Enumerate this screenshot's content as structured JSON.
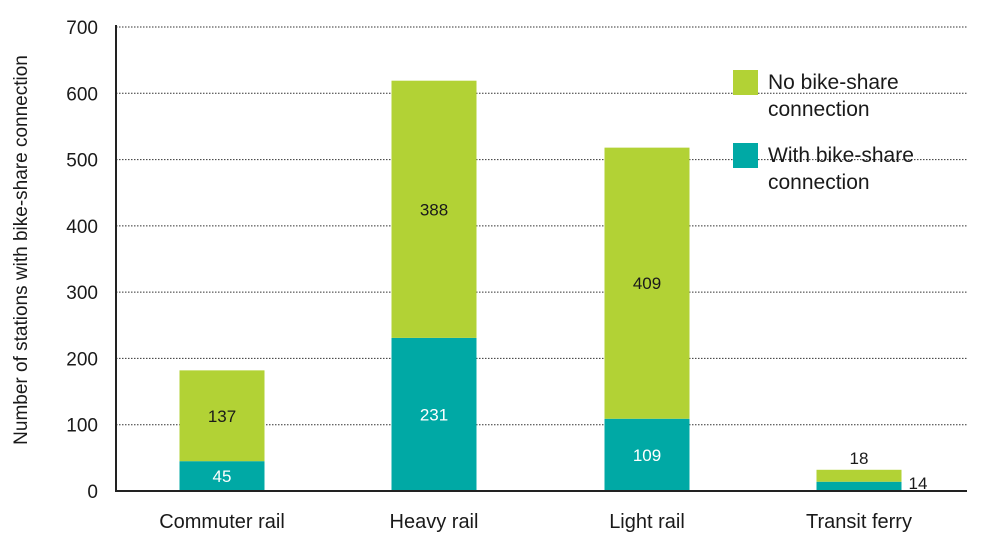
{
  "chart_data": {
    "type": "bar",
    "stacked": true,
    "title": "",
    "xlabel": "",
    "ylabel": "Number of stations with bike-share connection",
    "ylim": [
      0,
      700
    ],
    "yticks": [
      0,
      100,
      200,
      300,
      400,
      500,
      600,
      700
    ],
    "grid": true,
    "legend_position": "top-right",
    "categories": [
      "Commuter rail",
      "Heavy rail",
      "Light rail",
      "Transit ferry"
    ],
    "series": [
      {
        "name": "With bike-share connection",
        "color": "#00a9a5",
        "values": [
          45,
          231,
          109,
          14
        ],
        "labels": [
          "45",
          "231",
          "109",
          "14"
        ]
      },
      {
        "name": "No bike-share connection",
        "color": "#b2d235",
        "values": [
          137,
          388,
          409,
          18
        ],
        "labels": [
          "137",
          "388",
          "409",
          "18"
        ]
      }
    ],
    "legend": [
      {
        "lines": [
          "No bike-share",
          "connection"
        ],
        "color": "#b2d235"
      },
      {
        "lines": [
          "With bike-share",
          "connection"
        ],
        "color": "#00a9a5"
      }
    ]
  }
}
